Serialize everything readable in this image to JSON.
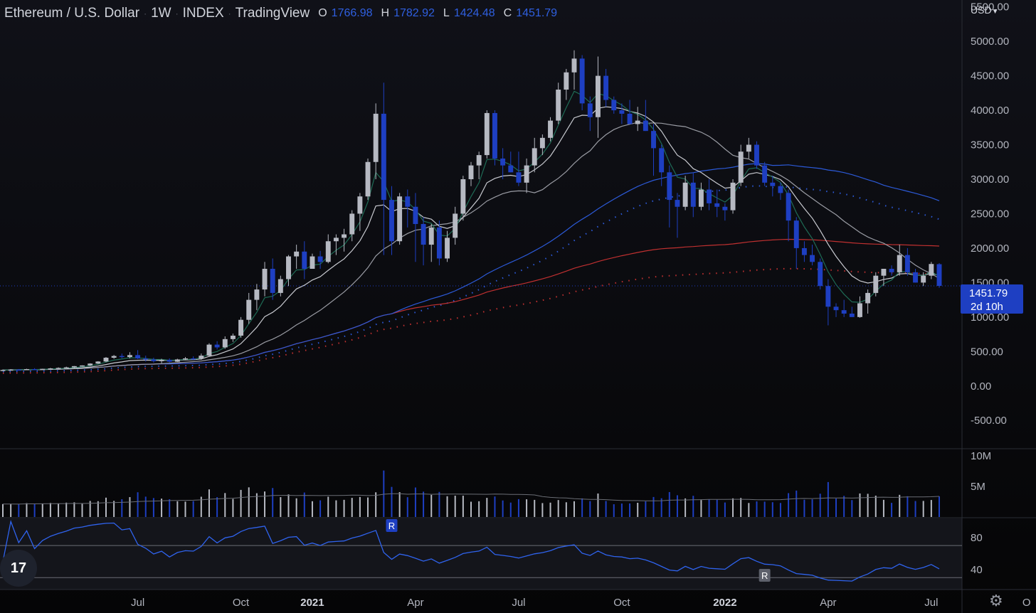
{
  "header": {
    "symbol": "Ethereum / U.S. Dollar",
    "interval": "1W",
    "exchange": "INDEX",
    "source": "TradingView",
    "open_label": "O",
    "open": "1766.98",
    "high_label": "H",
    "high": "1782.92",
    "low_label": "L",
    "low": "1424.48",
    "close_label": "C",
    "close": "1451.79"
  },
  "currency": "USD",
  "price_tag": {
    "price": "1451.79",
    "countdown": "2d 10h"
  },
  "colors": {
    "background": "#0c0d12",
    "up": "#b6b9c2",
    "down": "#1e3fc2",
    "ema_green": "#1e6b55",
    "ma_white": "#c8cad0",
    "ma_blue": "#2c5ad8",
    "ma_red": "#c03030",
    "rsi": "#2f63ee"
  },
  "icons": {
    "logo": "tradingview-logo-icon",
    "settings": "gear-icon",
    "currency_caret": "chevron-down-icon"
  },
  "chart_data": {
    "type": "candlestick",
    "main_axis": {
      "ticks": [
        "-500.00",
        "0.00",
        "500.00",
        "1000.00",
        "1500.00",
        "2000.00",
        "2500.00",
        "3000.00",
        "3500.00",
        "4000.00",
        "4500.00",
        "5000.00",
        "5500.00"
      ],
      "range": [
        -900,
        5600
      ]
    },
    "x_axis": {
      "ticks": [
        {
          "label": "Jul",
          "bar": 17
        },
        {
          "label": "Oct",
          "bar": 30
        },
        {
          "label": "2021",
          "bar": 39,
          "bold": true
        },
        {
          "label": "Apr",
          "bar": 52
        },
        {
          "label": "Jul",
          "bar": 65
        },
        {
          "label": "Oct",
          "bar": 78
        },
        {
          "label": "2022",
          "bar": 91,
          "bold": true
        },
        {
          "label": "Apr",
          "bar": 104
        },
        {
          "label": "Jul",
          "bar": 117
        },
        {
          "label": "O",
          "bar": 129
        }
      ]
    },
    "candles_ohlc": [
      [
        230,
        240,
        225,
        232
      ],
      [
        232,
        244,
        228,
        238
      ],
      [
        238,
        246,
        232,
        236
      ],
      [
        236,
        250,
        230,
        245
      ],
      [
        245,
        258,
        240,
        240
      ],
      [
        240,
        250,
        232,
        248
      ],
      [
        248,
        262,
        240,
        255
      ],
      [
        255,
        270,
        250,
        262
      ],
      [
        262,
        280,
        255,
        270
      ],
      [
        270,
        290,
        262,
        288
      ],
      [
        288,
        300,
        280,
        298
      ],
      [
        298,
        330,
        290,
        325
      ],
      [
        325,
        360,
        318,
        355
      ],
      [
        355,
        420,
        345,
        410
      ],
      [
        410,
        450,
        395,
        435
      ],
      [
        435,
        470,
        400,
        420
      ],
      [
        420,
        490,
        400,
        448
      ],
      [
        448,
        520,
        390,
        400
      ],
      [
        400,
        440,
        355,
        385
      ],
      [
        385,
        410,
        340,
        360
      ],
      [
        360,
        395,
        330,
        380
      ],
      [
        380,
        400,
        340,
        352
      ],
      [
        352,
        395,
        350,
        385
      ],
      [
        385,
        420,
        375,
        400
      ],
      [
        400,
        430,
        380,
        398
      ],
      [
        398,
        470,
        380,
        440
      ],
      [
        440,
        620,
        430,
        600
      ],
      [
        600,
        650,
        530,
        560
      ],
      [
        560,
        720,
        540,
        680
      ],
      [
        680,
        760,
        640,
        730
      ],
      [
        730,
        1000,
        700,
        960
      ],
      [
        960,
        1350,
        900,
        1250
      ],
      [
        1250,
        1480,
        1100,
        1400
      ],
      [
        1400,
        1800,
        1300,
        1700
      ],
      [
        1700,
        1850,
        1250,
        1350
      ],
      [
        1350,
        1600,
        1300,
        1550
      ],
      [
        1550,
        1900,
        1450,
        1880
      ],
      [
        1880,
        2050,
        1700,
        1950
      ],
      [
        1950,
        2100,
        1550,
        1700
      ],
      [
        1700,
        1920,
        1700,
        1880
      ],
      [
        1880,
        1960,
        1700,
        1800
      ],
      [
        1800,
        2200,
        1780,
        2100
      ],
      [
        2100,
        2200,
        1900,
        2150
      ],
      [
        2150,
        2280,
        1950,
        2200
      ],
      [
        2200,
        2550,
        2100,
        2500
      ],
      [
        2500,
        2800,
        2250,
        2750
      ],
      [
        2750,
        3300,
        2700,
        3250
      ],
      [
        3250,
        4100,
        3000,
        3950
      ],
      [
        3950,
        4400,
        1900,
        2700
      ],
      [
        2700,
        2900,
        1900,
        2100
      ],
      [
        2100,
        2800,
        2050,
        2750
      ],
      [
        2750,
        2850,
        2300,
        2600
      ],
      [
        2600,
        2800,
        1800,
        2350
      ],
      [
        2350,
        2450,
        1750,
        2050
      ],
      [
        2050,
        2350,
        1800,
        2300
      ],
      [
        2300,
        2400,
        1750,
        1850
      ],
      [
        1850,
        2250,
        1800,
        2150
      ],
      [
        2150,
        2600,
        2050,
        2500
      ],
      [
        2500,
        3050,
        2400,
        3000
      ],
      [
        3000,
        3250,
        2900,
        3200
      ],
      [
        3200,
        3400,
        3000,
        3350
      ],
      [
        3350,
        4000,
        3300,
        3960
      ],
      [
        3960,
        4000,
        3200,
        3300
      ],
      [
        3300,
        3450,
        3000,
        3200
      ],
      [
        3200,
        3400,
        3100,
        3100
      ],
      [
        3100,
        3400,
        2900,
        2950
      ],
      [
        2950,
        3300,
        2800,
        3200
      ],
      [
        3200,
        3600,
        3100,
        3450
      ],
      [
        3450,
        3650,
        3350,
        3600
      ],
      [
        3600,
        3900,
        3550,
        3850
      ],
      [
        3850,
        4400,
        3800,
        4300
      ],
      [
        4300,
        4600,
        4150,
        4550
      ],
      [
        4550,
        4870,
        4300,
        4750
      ],
      [
        4750,
        4800,
        4000,
        4100
      ],
      [
        4100,
        4200,
        3700,
        3900
      ],
      [
        3900,
        4780,
        3600,
        4500
      ],
      [
        4500,
        4600,
        4050,
        4150
      ],
      [
        4150,
        4200,
        3950,
        4000
      ],
      [
        4000,
        4100,
        3800,
        3950
      ],
      [
        3950,
        4150,
        3850,
        3800
      ],
      [
        3800,
        4050,
        3700,
        3850
      ],
      [
        3850,
        4150,
        3700,
        3700
      ],
      [
        3700,
        3800,
        3050,
        3450
      ],
      [
        3450,
        3500,
        2900,
        3100
      ],
      [
        3100,
        3200,
        2300,
        2700
      ],
      [
        2700,
        2800,
        2150,
        2600
      ],
      [
        2600,
        3050,
        2550,
        2950
      ],
      [
        2950,
        3100,
        2450,
        2600
      ],
      [
        2600,
        2950,
        2550,
        2850
      ],
      [
        2850,
        3000,
        2550,
        2650
      ],
      [
        2650,
        2850,
        2450,
        2600
      ],
      [
        2600,
        2650,
        2400,
        2550
      ],
      [
        2550,
        3000,
        2500,
        2950
      ],
      [
        2950,
        3500,
        2900,
        3400
      ],
      [
        3400,
        3600,
        3300,
        3500
      ],
      [
        3500,
        3550,
        3150,
        3200
      ],
      [
        3200,
        3250,
        2900,
        2950
      ],
      [
        2950,
        3050,
        2750,
        2900
      ],
      [
        2900,
        2950,
        2700,
        2800
      ],
      [
        2800,
        2850,
        2100,
        2400
      ],
      [
        2400,
        2450,
        1700,
        2000
      ],
      [
        2000,
        2100,
        1800,
        1900
      ],
      [
        1900,
        2050,
        1750,
        1800
      ],
      [
        1800,
        1850,
        1400,
        1450
      ],
      [
        1450,
        1550,
        880,
        1150
      ],
      [
        1150,
        1200,
        1000,
        1100
      ],
      [
        1100,
        1250,
        1000,
        1050
      ],
      [
        1050,
        1150,
        1000,
        1000
      ],
      [
        1000,
        1300,
        990,
        1200
      ],
      [
        1200,
        1400,
        1050,
        1350
      ],
      [
        1350,
        1650,
        1300,
        1600
      ],
      [
        1600,
        1700,
        1450,
        1700
      ],
      [
        1700,
        1750,
        1600,
        1650
      ],
      [
        1650,
        2050,
        1600,
        1900
      ],
      [
        1900,
        2000,
        1600,
        1650
      ],
      [
        1650,
        1700,
        1500,
        1500
      ],
      [
        1500,
        1650,
        1450,
        1600
      ],
      [
        1600,
        1800,
        1550,
        1770
      ],
      [
        1767,
        1783,
        1424,
        1452
      ]
    ],
    "volume_axis": {
      "ticks": [
        "5M",
        "10M"
      ],
      "range": [
        0,
        10600000
      ]
    },
    "rsi_axis": {
      "ticks": [
        "40",
        "80"
      ],
      "range": [
        16,
        103
      ],
      "bands": [
        70,
        30
      ]
    },
    "rsi_markers": [
      "R",
      "R"
    ]
  }
}
